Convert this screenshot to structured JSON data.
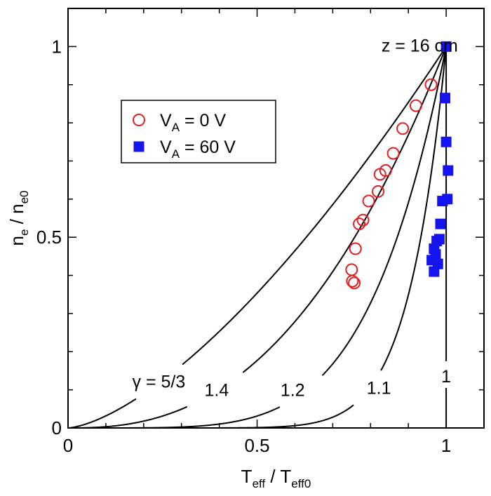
{
  "chart_data": {
    "type": "scatter",
    "xlim": [
      0,
      1.1
    ],
    "ylim": [
      0,
      1.1
    ],
    "x_ticks": [
      {
        "value": 0,
        "label": "0"
      },
      {
        "value": 0.5,
        "label": "0.5"
      },
      {
        "value": 1,
        "label": "1"
      }
    ],
    "y_ticks": [
      {
        "value": 0,
        "label": "0"
      },
      {
        "value": 0.5,
        "label": "0.5"
      },
      {
        "value": 1,
        "label": "1"
      }
    ],
    "x_minor_step": 0.1,
    "y_minor_step": 0.1,
    "xlabel": {
      "main": "T",
      "sub": "eff",
      "sep": " / T",
      "sub2": "eff0"
    },
    "ylabel": {
      "main": "n",
      "sub": "e",
      "sep": " / n",
      "sub2": "e0"
    },
    "annotation": "z = 16 cm",
    "grid": false,
    "legend_position": "upper-left",
    "curves": [
      {
        "gamma": 1.6667,
        "label": "γ = 5/3"
      },
      {
        "gamma": 1.4,
        "label": "1.4"
      },
      {
        "gamma": 1.2,
        "label": "1.2"
      },
      {
        "gamma": 1.1,
        "label": "1.1"
      },
      {
        "gamma": 1.0,
        "label": "1"
      }
    ],
    "series": [
      {
        "name": "V_A =  0 V",
        "legend": {
          "main": "V",
          "sub": "A",
          "rest": " =  0 V"
        },
        "marker": "open-circle",
        "color": "#e02020",
        "points": [
          {
            "x": 0.96,
            "y": 0.9
          },
          {
            "x": 0.92,
            "y": 0.845
          },
          {
            "x": 0.885,
            "y": 0.785
          },
          {
            "x": 0.86,
            "y": 0.72
          },
          {
            "x": 0.84,
            "y": 0.675
          },
          {
            "x": 0.825,
            "y": 0.665
          },
          {
            "x": 0.82,
            "y": 0.62
          },
          {
            "x": 0.795,
            "y": 0.595
          },
          {
            "x": 0.78,
            "y": 0.545
          },
          {
            "x": 0.77,
            "y": 0.535
          },
          {
            "x": 0.76,
            "y": 0.47
          },
          {
            "x": 0.75,
            "y": 0.415
          },
          {
            "x": 0.752,
            "y": 0.385
          },
          {
            "x": 0.757,
            "y": 0.38
          }
        ]
      },
      {
        "name": "V_A = 60 V",
        "legend": {
          "main": "V",
          "sub": "A",
          "rest": " = 60 V"
        },
        "marker": "filled-square",
        "color": "#1414f0",
        "points": [
          {
            "x": 1.0,
            "y": 1.0
          },
          {
            "x": 0.997,
            "y": 0.865
          },
          {
            "x": 1.0,
            "y": 0.75
          },
          {
            "x": 1.005,
            "y": 0.675
          },
          {
            "x": 1.003,
            "y": 0.6
          },
          {
            "x": 0.99,
            "y": 0.595
          },
          {
            "x": 0.985,
            "y": 0.535
          },
          {
            "x": 0.982,
            "y": 0.495
          },
          {
            "x": 0.975,
            "y": 0.49
          },
          {
            "x": 0.968,
            "y": 0.47
          },
          {
            "x": 0.972,
            "y": 0.455
          },
          {
            "x": 0.962,
            "y": 0.44
          },
          {
            "x": 0.978,
            "y": 0.43
          },
          {
            "x": 0.968,
            "y": 0.41
          }
        ]
      }
    ]
  }
}
